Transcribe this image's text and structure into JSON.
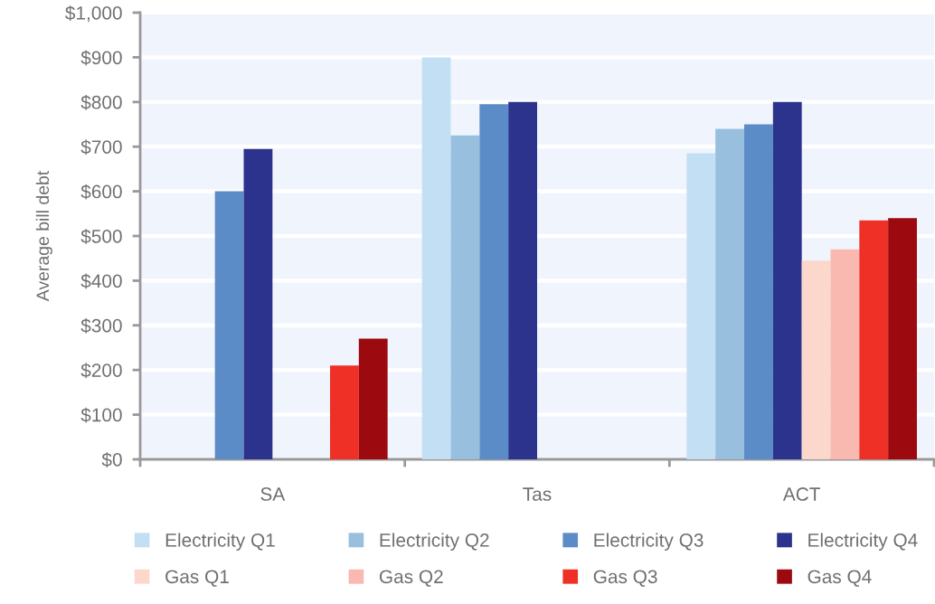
{
  "chart_data": {
    "type": "bar",
    "ylabel": "Average bill debt",
    "categories": [
      "SA",
      "Tas",
      "ACT"
    ],
    "series": [
      {
        "name": "Electricity Q1",
        "color": "#c3dff4",
        "values": [
          null,
          900,
          685
        ]
      },
      {
        "name": "Electricity Q2",
        "color": "#99bfdf",
        "values": [
          null,
          725,
          740
        ]
      },
      {
        "name": "Electricity Q3",
        "color": "#5b8cc8",
        "values": [
          600,
          795,
          750
        ]
      },
      {
        "name": "Electricity Q4",
        "color": "#2c338c",
        "values": [
          695,
          800,
          800
        ]
      },
      {
        "name": "Gas Q1",
        "color": "#fcd8cc",
        "values": [
          null,
          null,
          445
        ]
      },
      {
        "name": "Gas Q2",
        "color": "#f9b8b0",
        "values": [
          null,
          null,
          470
        ]
      },
      {
        "name": "Gas Q3",
        "color": "#ef3027",
        "values": [
          210,
          null,
          535
        ]
      },
      {
        "name": "Gas Q4",
        "color": "#9c0a10",
        "values": [
          270,
          null,
          540
        ]
      }
    ],
    "ylim": [
      0,
      1000
    ],
    "yticks": [
      {
        "value": 0,
        "label": "$0"
      },
      {
        "value": 100,
        "label": "$100"
      },
      {
        "value": 200,
        "label": "$200"
      },
      {
        "value": 300,
        "label": "$300"
      },
      {
        "value": 400,
        "label": "$400"
      },
      {
        "value": 500,
        "label": "$500"
      },
      {
        "value": 600,
        "label": "$600"
      },
      {
        "value": 700,
        "label": "$700"
      },
      {
        "value": 800,
        "label": "$800"
      },
      {
        "value": 900,
        "label": "$900"
      },
      {
        "value": 1000,
        "label": "$1,000"
      }
    ],
    "grid": "y",
    "legend": "bottom"
  }
}
